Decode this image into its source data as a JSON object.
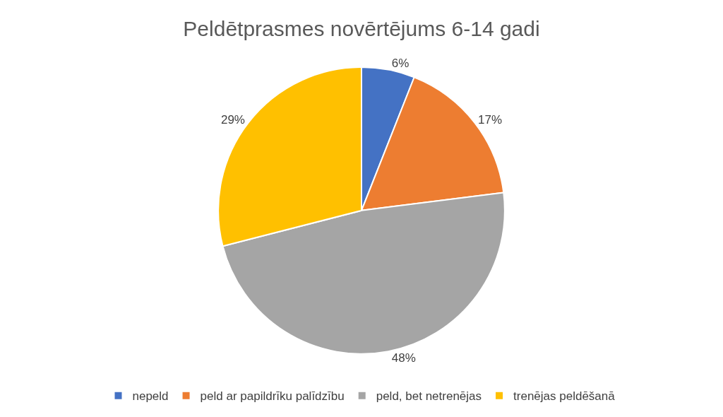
{
  "chart_data": {
    "type": "pie",
    "title": "Peldētprasmes novērtējums 6-14 gadi",
    "categories": [
      "nepeld",
      "peld ar papildrīku palīdzību",
      "peld, bet netrenējas",
      "trenējas peldēšanā"
    ],
    "values": [
      6,
      17,
      48,
      29
    ],
    "value_labels": [
      "6%",
      "17%",
      "48%",
      "29%"
    ],
    "colors": [
      "#4472c4",
      "#ed7d31",
      "#a5a5a5",
      "#ffc000"
    ],
    "legend": "bottom"
  }
}
